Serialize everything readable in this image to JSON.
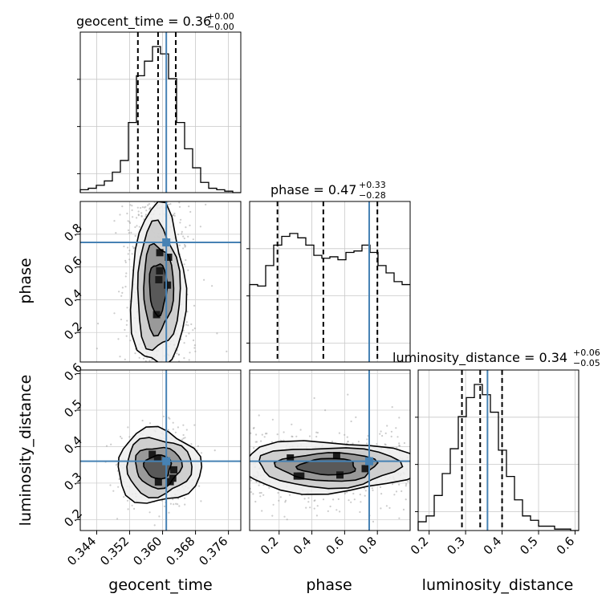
{
  "chart_data": {
    "type": "corner",
    "parameters": [
      "geocent_time",
      "phase",
      "luminosity_distance"
    ],
    "axis_labels": {
      "geocent_time": "geocent_time",
      "phase": "phase",
      "luminosity_distance": "luminosity_distance"
    },
    "ranges": {
      "geocent_time": [
        0.34,
        0.379
      ],
      "phase": [
        0.02,
        1.0
      ],
      "luminosity_distance": [
        0.17,
        0.61
      ]
    },
    "ticks": {
      "geocent_time": [
        "0.344",
        "0.352",
        "0.360",
        "0.368",
        "0.376"
      ],
      "phase": [
        "0.2",
        "0.4",
        "0.6",
        "0.8"
      ],
      "luminosity_distance": [
        "0.2",
        "0.3",
        "0.4",
        "0.5",
        "0.6"
      ]
    },
    "truths": {
      "geocent_time": 0.3609,
      "phase": 0.75,
      "luminosity_distance": 0.36
    },
    "quantiles": {
      "geocent_time": [
        0.354,
        0.3589,
        0.3632
      ],
      "phase": [
        0.19,
        0.47,
        0.8
      ],
      "luminosity_distance": [
        0.29,
        0.34,
        0.4
      ]
    },
    "titles": [
      {
        "param": "geocent_time",
        "text": "geocent_time = 0.36",
        "plus": "+0.00",
        "minus": "−0.00"
      },
      {
        "param": "phase",
        "text": "phase = 0.47",
        "plus": "+0.33",
        "minus": "−0.28"
      },
      {
        "param": "luminosity_distance",
        "text": "luminosity_distance = 0.34",
        "plus": "+0.06",
        "minus": "−0.05"
      }
    ],
    "histograms": {
      "geocent_time": [
        0.02,
        0.03,
        0.05,
        0.08,
        0.14,
        0.22,
        0.48,
        0.8,
        0.9,
        1.0,
        0.95,
        0.78,
        0.48,
        0.3,
        0.17,
        0.07,
        0.03,
        0.02,
        0.01,
        0.0
      ],
      "phase": [
        0.53,
        0.52,
        0.66,
        0.8,
        0.86,
        0.88,
        0.85,
        0.8,
        0.73,
        0.71,
        0.72,
        0.7,
        0.75,
        0.76,
        0.8,
        0.75,
        0.66,
        0.61,
        0.55,
        0.53
      ],
      "luminosity_distance": [
        0.06,
        0.1,
        0.24,
        0.39,
        0.56,
        0.78,
        0.91,
        1.0,
        0.93,
        0.81,
        0.55,
        0.37,
        0.21,
        0.1,
        0.07,
        0.03,
        0.03,
        0.01,
        0.01,
        0.0
      ]
    },
    "panels_2d": [
      {
        "x": "geocent_time",
        "y": "phase"
      },
      {
        "x": "geocent_time",
        "y": "luminosity_distance"
      },
      {
        "x": "phase",
        "y": "luminosity_distance"
      }
    ],
    "truth_color": "#4682b4",
    "grid": true
  }
}
